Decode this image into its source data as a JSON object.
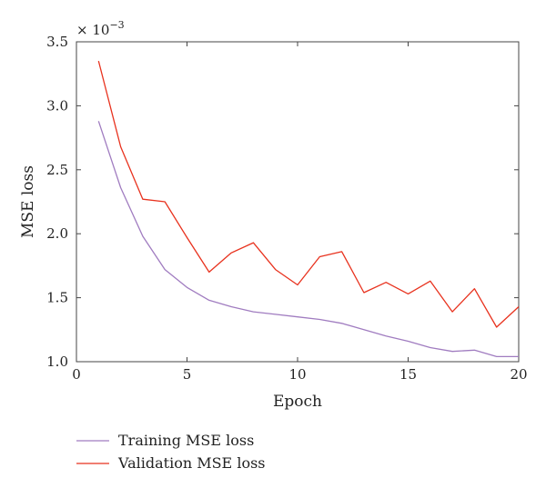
{
  "chart_data": {
    "type": "line",
    "xlabel": "Epoch",
    "ylabel": "MSE loss",
    "xlim": [
      0,
      20
    ],
    "ylim": [
      1.0,
      3.5
    ],
    "x_ticks": [
      "0",
      "5",
      "10",
      "15",
      "20"
    ],
    "y_ticks": [
      "1.0",
      "1.5",
      "2.0",
      "2.5",
      "3.0",
      "3.5"
    ],
    "y_multiplier": {
      "base": "× 10",
      "exponent": "−3"
    },
    "grid": false,
    "legend_position": "bottom-left, below plot",
    "x": [
      1,
      2,
      3,
      4,
      5,
      6,
      7,
      8,
      9,
      10,
      11,
      12,
      13,
      14,
      15,
      16,
      17,
      18,
      19,
      20
    ],
    "series": [
      {
        "name": "Training MSE loss",
        "color": "#a07cc0",
        "values": [
          2.88,
          2.36,
          1.98,
          1.72,
          1.58,
          1.48,
          1.43,
          1.39,
          1.37,
          1.35,
          1.33,
          1.3,
          1.25,
          1.2,
          1.16,
          1.11,
          1.08,
          1.09,
          1.04,
          1.04
        ]
      },
      {
        "name": "Validation MSE loss",
        "color": "#e8321e",
        "values": [
          3.35,
          2.68,
          2.27,
          2.25,
          1.97,
          1.7,
          1.85,
          1.93,
          1.72,
          1.6,
          1.82,
          1.86,
          1.54,
          1.62,
          1.53,
          1.63,
          1.39,
          1.57,
          1.27,
          1.43
        ]
      }
    ]
  }
}
